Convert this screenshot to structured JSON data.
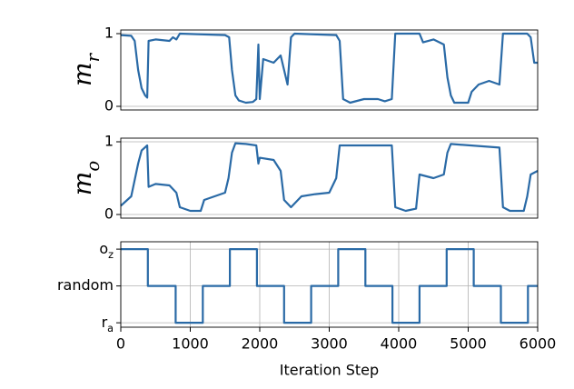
{
  "chart_data": [
    {
      "type": "line",
      "y_label": "m_r",
      "color": "#2a6aa6",
      "xlim": [
        0,
        6000
      ],
      "ylim": [
        -0.05,
        1.05
      ],
      "yticks": [
        0,
        1
      ],
      "grid": "y",
      "x": [
        0,
        150,
        200,
        250,
        300,
        350,
        380,
        400,
        500,
        700,
        750,
        800,
        850,
        1500,
        1560,
        1600,
        1650,
        1700,
        1800,
        1900,
        1950,
        1980,
        2000,
        2050,
        2200,
        2300,
        2350,
        2400,
        2450,
        2500,
        3100,
        3150,
        3200,
        3300,
        3500,
        3700,
        3800,
        3900,
        3950,
        4300,
        4350,
        4500,
        4650,
        4700,
        4750,
        4800,
        5000,
        5050,
        5150,
        5300,
        5450,
        5500,
        5850,
        5900,
        5950,
        6000
      ],
      "values": [
        0.98,
        0.97,
        0.9,
        0.5,
        0.25,
        0.15,
        0.12,
        0.9,
        0.92,
        0.9,
        0.95,
        0.92,
        1.0,
        0.98,
        0.95,
        0.5,
        0.15,
        0.08,
        0.05,
        0.06,
        0.1,
        0.85,
        0.1,
        0.65,
        0.6,
        0.7,
        0.5,
        0.3,
        0.95,
        1.0,
        0.98,
        0.9,
        0.1,
        0.05,
        0.1,
        0.1,
        0.07,
        0.1,
        1.0,
        1.0,
        0.88,
        0.92,
        0.85,
        0.4,
        0.15,
        0.05,
        0.05,
        0.2,
        0.3,
        0.35,
        0.3,
        1.0,
        1.0,
        0.95,
        0.6,
        0.6
      ]
    },
    {
      "type": "line",
      "y_label": "m_o",
      "color": "#2a6aa6",
      "xlim": [
        0,
        6000
      ],
      "ylim": [
        -0.05,
        1.05
      ],
      "yticks": [
        0,
        1
      ],
      "grid": "y",
      "x": [
        0,
        150,
        250,
        300,
        380,
        400,
        500,
        700,
        800,
        850,
        1000,
        1150,
        1200,
        1350,
        1500,
        1550,
        1600,
        1650,
        1800,
        1950,
        1980,
        2000,
        2200,
        2300,
        2350,
        2450,
        2600,
        2800,
        3000,
        3100,
        3150,
        3900,
        3950,
        4100,
        4250,
        4300,
        4500,
        4650,
        4700,
        4750,
        5450,
        5500,
        5600,
        5800,
        5850,
        5900,
        6000
      ],
      "values": [
        0.12,
        0.25,
        0.7,
        0.88,
        0.95,
        0.38,
        0.42,
        0.4,
        0.3,
        0.1,
        0.05,
        0.05,
        0.2,
        0.25,
        0.3,
        0.5,
        0.85,
        0.98,
        0.97,
        0.95,
        0.7,
        0.78,
        0.75,
        0.6,
        0.2,
        0.1,
        0.25,
        0.28,
        0.3,
        0.5,
        0.95,
        0.95,
        0.1,
        0.05,
        0.08,
        0.55,
        0.5,
        0.55,
        0.85,
        0.97,
        0.92,
        0.1,
        0.05,
        0.05,
        0.25,
        0.55,
        0.6
      ]
    },
    {
      "type": "line",
      "x_label": "Iteration Step",
      "color": "#2a6aa6",
      "xlim": [
        0,
        6000
      ],
      "ylim": [
        -0.12,
        2.2
      ],
      "xticks": [
        0,
        1000,
        2000,
        3000,
        4000,
        5000,
        6000
      ],
      "yticks": [
        {
          "value": 0,
          "label": "r_a"
        },
        {
          "value": 1,
          "label": "random"
        },
        {
          "value": 2,
          "label": "o_z"
        }
      ],
      "grid": "both",
      "x": [
        0,
        390,
        390,
        790,
        790,
        1180,
        1180,
        1570,
        1570,
        1960,
        1960,
        2350,
        2350,
        2740,
        2740,
        3130,
        3130,
        3520,
        3520,
        3910,
        3910,
        4300,
        4300,
        4690,
        4690,
        5080,
        5080,
        5470,
        5470,
        5860,
        5860,
        6000
      ],
      "values": [
        2,
        2,
        1,
        1,
        0,
        0,
        1,
        1,
        2,
        2,
        1,
        1,
        0,
        0,
        1,
        1,
        2,
        2,
        1,
        1,
        0,
        0,
        1,
        1,
        2,
        2,
        1,
        1,
        0,
        0,
        1,
        1
      ]
    }
  ]
}
